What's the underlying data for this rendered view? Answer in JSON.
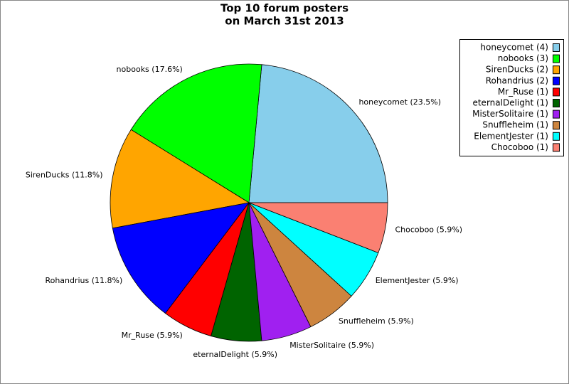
{
  "chart_data": {
    "type": "pie",
    "title": [
      "Top 10 forum posters",
      "on March 31st 2013"
    ],
    "values": [
      4,
      3,
      2,
      2,
      1,
      1,
      1,
      1,
      1,
      1
    ],
    "slice_labels": [
      "honeycomet (23.5%)",
      "nobooks (17.6%)",
      "SirenDucks (11.8%)",
      "Rohandrius (11.8%)",
      "Mr_Ruse (5.9%)",
      "eternalDelight (5.9%)",
      "MisterSolitaire (5.9%)",
      "Snuffleheim (5.9%)",
      "ElementJester (5.9%)",
      "Chocoboo (5.9%)"
    ],
    "legend_labels": [
      "honeycomet (4)",
      "nobooks (3)",
      "SirenDucks (2)",
      "Rohandrius (2)",
      "Mr_Ruse (1)",
      "eternalDelight (1)",
      "MisterSolitaire (1)",
      "Snuffleheim (1)",
      "ElementJester (1)",
      "Chocoboo (1)"
    ],
    "colors": [
      "#87ceeb",
      "#00ff00",
      "#ffa500",
      "#0000ff",
      "#ff0000",
      "#006400",
      "#a020f0",
      "#cd853f",
      "#00ffff",
      "#fa8072"
    ],
    "legend": "upper right"
  }
}
